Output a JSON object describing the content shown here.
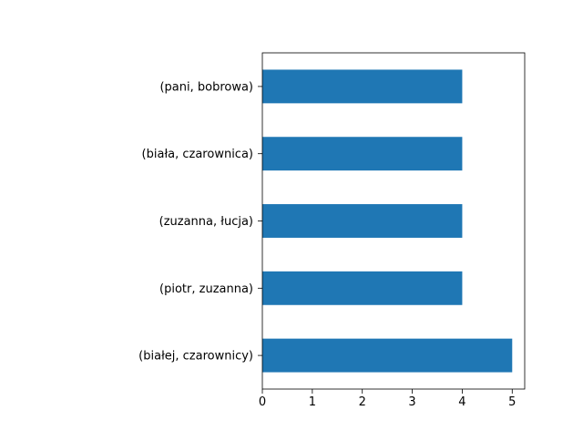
{
  "chart_data": {
    "type": "bar",
    "orientation": "horizontal",
    "title": "",
    "xlabel": "",
    "ylabel": "",
    "categories": [
      "(białej, czarownicy)",
      "(piotr, zuzanna)",
      "(zuzanna, łucja)",
      "(biała, czarownica)",
      "(pani, bobrowa)"
    ],
    "values": [
      5,
      4,
      4,
      4,
      4
    ],
    "xlim": [
      0,
      5.25
    ],
    "xticks": [
      0,
      1,
      2,
      3,
      4,
      5
    ],
    "grid": false,
    "legend": false,
    "bar_color": "#1f77b4"
  }
}
